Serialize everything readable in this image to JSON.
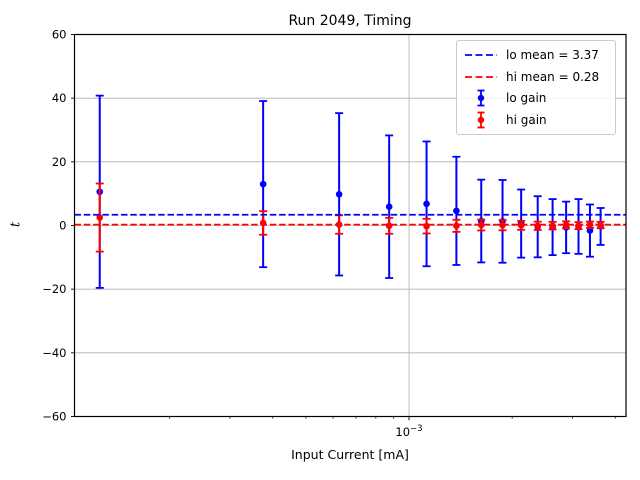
{
  "title": "Run 2049, Timing",
  "colors": {
    "lo_gain": "#0000ff",
    "hi_gain": "#ff0000",
    "grid": "#b0b0b0",
    "frame": "#000000",
    "background": "#ffffff",
    "legend_border": "#cccccc"
  },
  "legend": {
    "items": [
      {
        "label": "lo mean = 3.37",
        "swatch": "dashed-line",
        "color": "#0000ff"
      },
      {
        "label": "hi mean = 0.28",
        "swatch": "dashed-line",
        "color": "#ff0000"
      },
      {
        "label": "lo gain",
        "swatch": "errorbar-marker",
        "color": "#0000ff"
      },
      {
        "label": "hi gain",
        "swatch": "errorbar-marker",
        "color": "#ff0000"
      }
    ]
  },
  "x_tick": {
    "base": "10",
    "exponent": "−3"
  },
  "chart_data": {
    "type": "scatter",
    "title": "Run 2049, Timing",
    "xlabel": "Input Current [mA]",
    "ylabel": "t",
    "x_scale": "log",
    "xlim": [
      0.0001055,
      0.0043
    ],
    "ylim": [
      -60,
      60
    ],
    "y_ticks": [
      60,
      40,
      20,
      0,
      -20,
      -40,
      -60
    ],
    "x_major_ticks": [
      0.001
    ],
    "x_minor_ticks": [
      0.0002,
      0.0003,
      0.0004,
      0.0005,
      0.0006,
      0.0007,
      0.0008,
      0.0009,
      0.002,
      0.003,
      0.004
    ],
    "grid": true,
    "legend_position": "upper right",
    "x": [
      0.000125,
      0.000375,
      0.000625,
      0.000875,
      0.001125,
      0.001375,
      0.001625,
      0.001875,
      0.002125,
      0.002375,
      0.002625,
      0.002875,
      0.003125,
      0.003375,
      0.003625
    ],
    "series": [
      {
        "name": "lo gain",
        "color": "#0000ff",
        "values": [
          10.6,
          13.0,
          9.8,
          5.9,
          6.8,
          4.6,
          1.4,
          1.3,
          0.6,
          -0.4,
          -0.5,
          -0.6,
          -0.3,
          -1.6,
          -0.3
        ],
        "errors": [
          30.2,
          26.1,
          25.5,
          22.4,
          19.6,
          17.0,
          13.0,
          13.0,
          10.7,
          9.6,
          8.8,
          8.1,
          8.6,
          8.2,
          5.8
        ]
      },
      {
        "name": "hi gain",
        "color": "#ff0000",
        "values": [
          2.5,
          0.8,
          0.3,
          -0.1,
          -0.2,
          -0.1,
          0.15,
          0.1,
          0.05,
          -0.1,
          -0.05,
          0.2,
          -0.05,
          0.25,
          0.15
        ],
        "errors": [
          10.7,
          3.7,
          2.9,
          2.5,
          2.3,
          1.9,
          1.7,
          1.6,
          1.4,
          1.3,
          1.2,
          1.1,
          1.1,
          1.0,
          1.0
        ]
      }
    ],
    "mean_lines": [
      {
        "name": "lo mean",
        "value": 3.37,
        "color": "#0000ff"
      },
      {
        "name": "hi mean",
        "value": 0.28,
        "color": "#ff0000"
      }
    ]
  }
}
